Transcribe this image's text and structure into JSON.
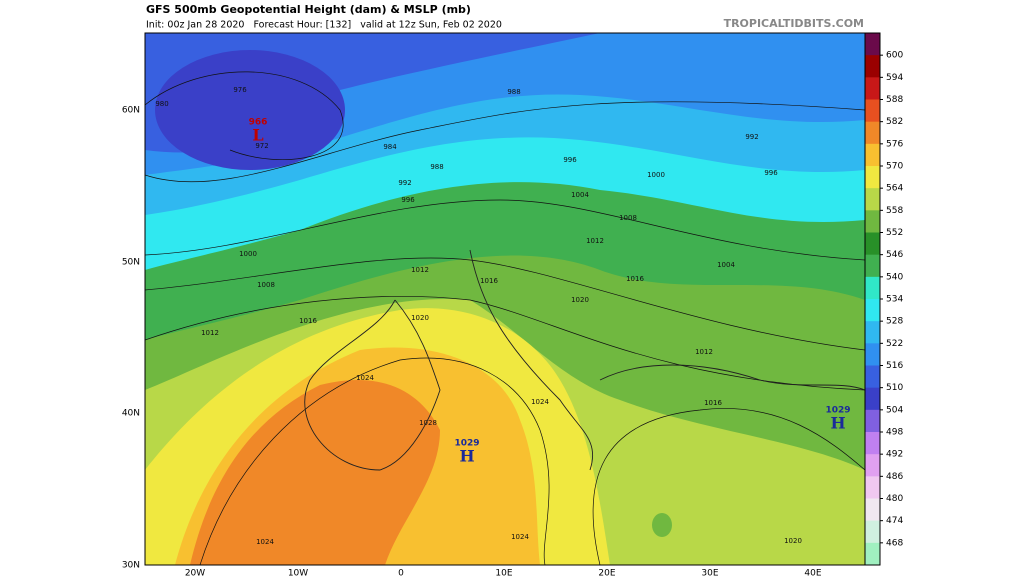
{
  "header": {
    "title": "GFS 500mb Geopotential Height (dam) & MSLP (mb)",
    "subtitle": "Init: 00z Jan 28 2020   Forecast Hour: [132]   valid at 12z Sun, Feb 02 2020",
    "watermark": "TROPICALTIDBITS.COM"
  },
  "map": {
    "lat_labels": [
      "60N",
      "50N",
      "40N",
      "30N"
    ],
    "lon_labels": [
      "20W",
      "10W",
      "0",
      "10E",
      "20E",
      "30E",
      "40E"
    ],
    "centers": [
      {
        "letter": "L",
        "pressure": 966
      },
      {
        "letter": "H",
        "pressure": 1029
      },
      {
        "letter": "H",
        "pressure": 1029
      }
    ],
    "isobar_labels": [
      976,
      980,
      972,
      984,
      988,
      992,
      996,
      1000,
      1008,
      1012,
      1016,
      1024,
      1028,
      1024,
      1020,
      1012,
      1016,
      1020,
      1024,
      1024,
      988,
      996,
      992,
      996,
      1000,
      1004,
      1008,
      1012,
      1016,
      1004,
      1012,
      1016,
      1020
    ]
  },
  "colorbar": {
    "labels": [
      600,
      594,
      588,
      582,
      576,
      570,
      564,
      558,
      552,
      546,
      540,
      534,
      528,
      522,
      516,
      510,
      504,
      498,
      492,
      486,
      480,
      474,
      468
    ],
    "colors": [
      "#6a0a4a",
      "#9a0000",
      "#c81818",
      "#e85020",
      "#f08828",
      "#f8c030",
      "#f0e840",
      "#b8d848",
      "#70b840",
      "#289028",
      "#40b050",
      "#30e8c8",
      "#30e8f0",
      "#30b8f0",
      "#3090f0",
      "#3860e0",
      "#3a40c8",
      "#8060e0",
      "#c080f0",
      "#e0a0f0",
      "#f0c8f0",
      "#f0e8f0",
      "#d0f0e0",
      "#a0f0c0"
    ]
  }
}
